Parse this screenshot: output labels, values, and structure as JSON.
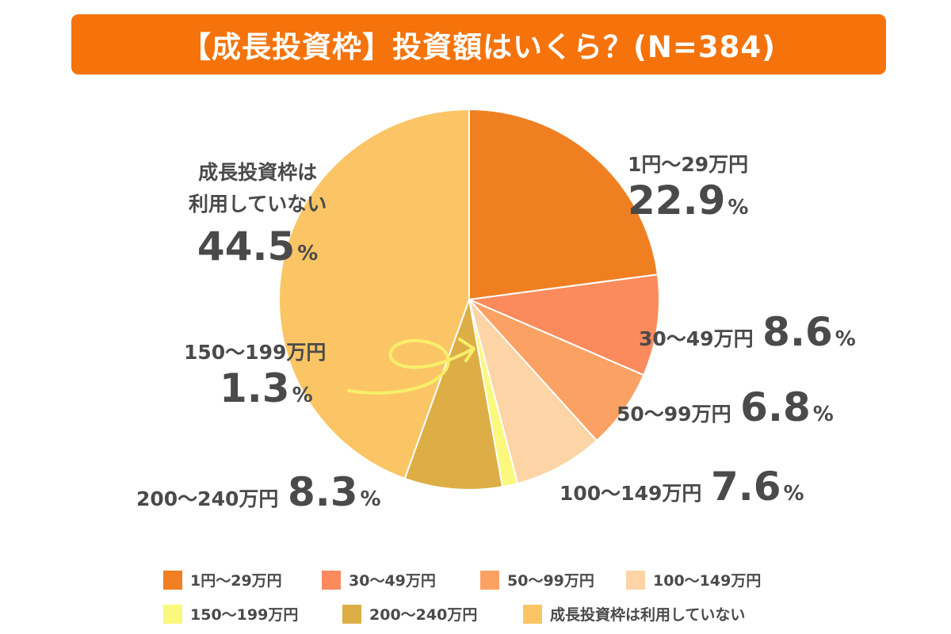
{
  "chart_data": {
    "type": "pie",
    "title": "【成長投資枠】投資額はいくら？(N=384)",
    "slices": [
      {
        "category": "1円〜29万円",
        "value": 22.9,
        "color": "#f07f22"
      },
      {
        "category": "30〜49万円",
        "value": 8.6,
        "color": "#fb8b5c"
      },
      {
        "category": "50〜99万円",
        "value": 6.8,
        "color": "#fba163"
      },
      {
        "category": "100〜149万円",
        "value": 7.6,
        "color": "#fcd4a5"
      },
      {
        "category": "150〜199万円",
        "value": 1.3,
        "color": "#fbf87e"
      },
      {
        "category": "200〜240万円",
        "value": 8.3,
        "color": "#ddae46"
      },
      {
        "category": "成長投資枠は利用していない",
        "value": 44.5,
        "color": "#fbc565"
      }
    ],
    "unit": "%"
  },
  "labels": {
    "s0": {
      "cat": "1円〜29万円",
      "num": "22.9",
      "pct": "%"
    },
    "s1": {
      "cat": "30〜49万円",
      "num": "8.6",
      "pct": "%"
    },
    "s2": {
      "cat": "50〜99万円",
      "num": "6.8",
      "pct": "%"
    },
    "s3": {
      "cat": "100〜149万円",
      "num": "7.6",
      "pct": "%"
    },
    "s4": {
      "cat": "150〜199万円",
      "num": "1.3",
      "pct": "%"
    },
    "s5": {
      "cat": "200〜240万円",
      "num": "8.3",
      "pct": "%"
    },
    "s6": {
      "cat_line1": "成長投資枠は",
      "cat_line2": "利用していない",
      "num": "44.5",
      "pct": "%"
    }
  },
  "legend": [
    "1円〜29万円",
    "30〜49万円",
    "50〜99万円",
    "100〜149万円",
    "150〜199万円",
    "200〜240万円",
    "成長投資枠は利用していない"
  ],
  "colors": {
    "title_bg": "#f5730a",
    "text": "#4a4a4a",
    "arrow": "#f7ef6a"
  }
}
